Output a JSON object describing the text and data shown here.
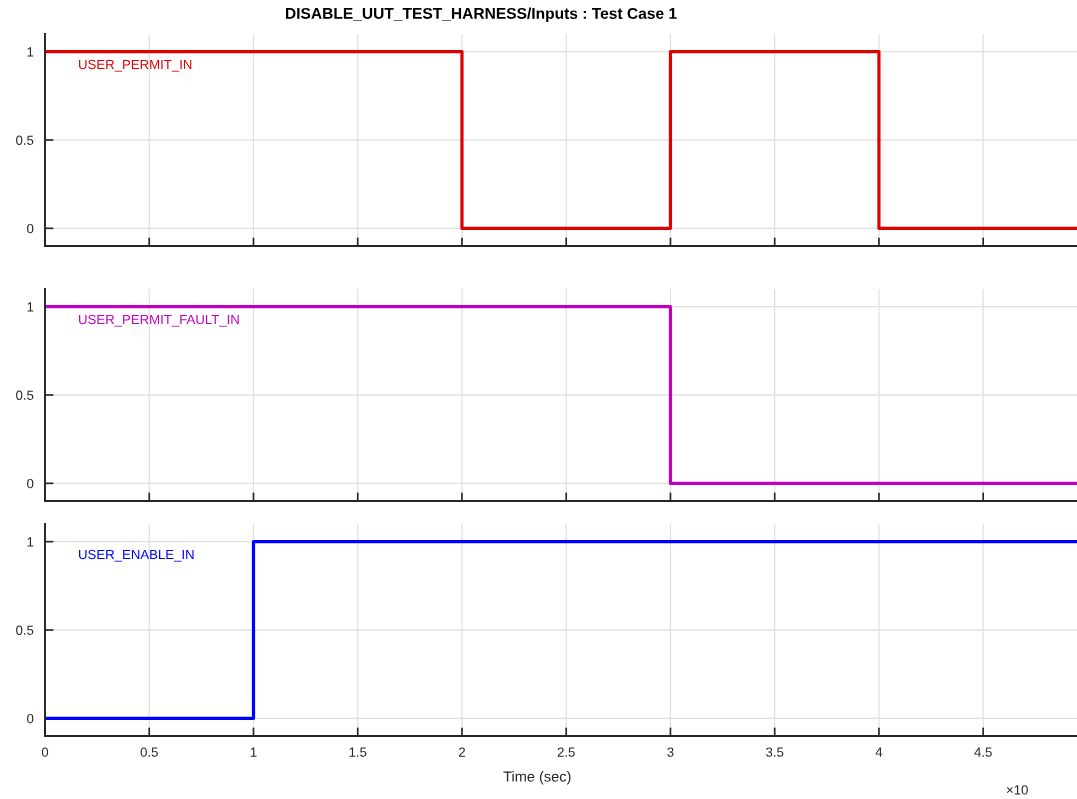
{
  "chart_data": [
    {
      "type": "step",
      "title": "DISABLE_UUT_TEST_HARNESS/Inputs : Test Case 1",
      "series": [
        {
          "name": "USER_PERMIT_IN",
          "color": "#e00000",
          "x": [
            0,
            2,
            3,
            4,
            4.95
          ],
          "values": [
            1,
            0,
            1,
            0,
            0
          ]
        }
      ],
      "xlim": [
        0,
        4.95
      ],
      "ylim": [
        -0.1,
        1.1
      ],
      "xticks": [
        0,
        0.5,
        1,
        1.5,
        2,
        2.5,
        3,
        3.5,
        4,
        4.5
      ],
      "yticks": [
        0,
        0.5,
        1
      ],
      "grid": true,
      "tick_labels": "y",
      "line_style": "solid"
    },
    {
      "type": "step",
      "series": [
        {
          "name": "USER_PERMIT_FAULT_IN",
          "color": "#c000c0",
          "x": [
            0,
            3,
            4.95
          ],
          "values": [
            1,
            0,
            0
          ]
        }
      ],
      "xlim": [
        0,
        4.95
      ],
      "ylim": [
        -0.1,
        1.1
      ],
      "xticks": [
        0,
        0.5,
        1,
        1.5,
        2,
        2.5,
        3,
        3.5,
        4,
        4.5
      ],
      "yticks": [
        0,
        0.5,
        1
      ],
      "grid": true,
      "tick_labels": "y",
      "line_style": "solid"
    },
    {
      "type": "step",
      "xlabel": "Time (sec)",
      "annotations": [
        "×10"
      ],
      "series": [
        {
          "name": "USER_ENABLE_IN",
          "color": "#0000ff",
          "x": [
            0,
            1,
            4.95
          ],
          "values": [
            0,
            1,
            1
          ]
        }
      ],
      "xlim": [
        0,
        4.95
      ],
      "ylim": [
        -0.1,
        1.1
      ],
      "xticks": [
        0,
        0.5,
        1,
        1.5,
        2,
        2.5,
        3,
        3.5,
        4,
        4.5
      ],
      "yticks": [
        0,
        0.5,
        1
      ],
      "grid": true,
      "line_style": "solid"
    }
  ]
}
